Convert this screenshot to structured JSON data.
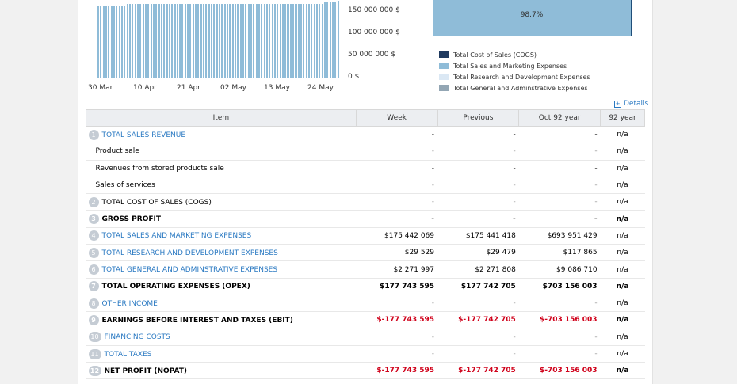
{
  "chart_data": [
    {
      "type": "bar",
      "y_ticks": [
        "150 000 000 $",
        "100 000 000 $",
        "50 000 000 $",
        "0 $"
      ],
      "ylim": [
        0,
        175000000
      ],
      "x_labels": [
        "30 Mar",
        "10 Apr",
        "21 Apr",
        "02 May",
        "13 May",
        "24 May"
      ],
      "bar_count": 92,
      "values": [
        163000000,
        163000000,
        163000000,
        163000000,
        163000000,
        163000000,
        163000000,
        163000000,
        163000000,
        163000000,
        163000000,
        167000000,
        167000000,
        167000000,
        167000000,
        167000000,
        167000000,
        167000000,
        167000000,
        167000000,
        167000000,
        167000000,
        167000000,
        167000000,
        167000000,
        167000000,
        167000000,
        167000000,
        167000000,
        167000000,
        167000000,
        167000000,
        167000000,
        167000000,
        167000000,
        167000000,
        167000000,
        167000000,
        167000000,
        167000000,
        167000000,
        167000000,
        167000000,
        167000000,
        167000000,
        167000000,
        167000000,
        167000000,
        167000000,
        167000000,
        167000000,
        167000000,
        167000000,
        167000000,
        167000000,
        167000000,
        167000000,
        167000000,
        167000000,
        167000000,
        167000000,
        167000000,
        167000000,
        167000000,
        167000000,
        167000000,
        167000000,
        167000000,
        167000000,
        167000000,
        167000000,
        167000000,
        167000000,
        167000000,
        167000000,
        167000000,
        167000000,
        167000000,
        167000000,
        167000000,
        167000000,
        167000000,
        167000000,
        167000000,
        167000000,
        167000000,
        169000000,
        169000000,
        169000000,
        169000000,
        171000000,
        173000000
      ],
      "color": "#8fbcd8"
    },
    {
      "type": "pie",
      "slices": [
        {
          "name": "Total Cost of Sales (COGS)",
          "value": 0,
          "color": "#1f3a5f"
        },
        {
          "name": "Total Sales and Marketing Expenses",
          "value": 98.7,
          "color": "#8fbcd8"
        },
        {
          "name": "Total Research and Development Expenses",
          "value": 0,
          "color": "#dbe8f4"
        },
        {
          "name": "Total General and Adminstrative Expenses",
          "value": 1.3,
          "color": "#93a6b4"
        }
      ],
      "label": "98.7%"
    }
  ],
  "details_label": "Details",
  "table": {
    "headers": [
      "Item",
      "Week",
      "Previous",
      "Oct 92 year",
      "92 year"
    ],
    "rows": [
      {
        "num": "1",
        "label": "TOTAL SALES REVENUE",
        "style": "link",
        "week": "-",
        "prev": "-",
        "oct": "-",
        "y92": "n/a",
        "dash_style": "dark"
      },
      {
        "num": "",
        "label": "Product sale",
        "style": "sub",
        "week": "-",
        "prev": "-",
        "oct": "-",
        "y92": "n/a",
        "dash_style": "light"
      },
      {
        "num": "",
        "label": "Revenues from stored products sale",
        "style": "sub",
        "week": "-",
        "prev": "-",
        "oct": "-",
        "y92": "n/a",
        "dash_style": "dark"
      },
      {
        "num": "",
        "label": "Sales of services",
        "style": "sub",
        "week": "-",
        "prev": "-",
        "oct": "-",
        "y92": "n/a",
        "dash_style": "light"
      },
      {
        "num": "2",
        "label": "TOTAL COST OF SALES (COGS)",
        "style": "plain",
        "week": "-",
        "prev": "-",
        "oct": "-",
        "y92": "n/a",
        "dash_style": "light"
      },
      {
        "num": "3",
        "label": "GROSS PROFIT",
        "style": "bold",
        "week": "-",
        "prev": "-",
        "oct": "-",
        "y92": "n/a",
        "dash_style": "dark"
      },
      {
        "num": "4",
        "label": "TOTAL SALES AND MARKETING EXPENSES",
        "style": "link",
        "week": "$175 442 069",
        "prev": "$175 441 418",
        "oct": "$693 951 429",
        "y92": "n/a"
      },
      {
        "num": "5",
        "label": "TOTAL RESEARCH AND DEVELOPMENT EXPENSES",
        "style": "link",
        "week": "$29 529",
        "prev": "$29 479",
        "oct": "$117 865",
        "y92": "n/a"
      },
      {
        "num": "6",
        "label": "TOTAL GENERAL AND ADMINSTRATIVE EXPENSES",
        "style": "link",
        "week": "$2 271 997",
        "prev": "$2 271 808",
        "oct": "$9 086 710",
        "y92": "n/a"
      },
      {
        "num": "7",
        "label": "TOTAL OPERATING EXPENSES (OPEX)",
        "style": "bold",
        "week": "$177 743 595",
        "prev": "$177 742 705",
        "oct": "$703 156 003",
        "y92": "n/a"
      },
      {
        "num": "8",
        "label": "OTHER INCOME",
        "style": "link",
        "week": "-",
        "prev": "-",
        "oct": "-",
        "y92": "n/a",
        "dash_style": "light"
      },
      {
        "num": "9",
        "label": "EARNINGS BEFORE INTEREST AND TAXES (EBIT)",
        "style": "bold",
        "week": "$-177 743 595",
        "prev": "$-177 742 705",
        "oct": "$-703 156 003",
        "y92": "n/a",
        "neg": true
      },
      {
        "num": "10",
        "label": "FINANCING COSTS",
        "style": "link",
        "week": "-",
        "prev": "-",
        "oct": "-",
        "y92": "n/a",
        "dash_style": "light"
      },
      {
        "num": "11",
        "label": "TOTAL TAXES",
        "style": "link",
        "week": "-",
        "prev": "-",
        "oct": "-",
        "y92": "n/a",
        "dash_style": "light"
      },
      {
        "num": "12",
        "label": "NET PROFIT (NOPAT)",
        "style": "bold",
        "week": "$-177 743 595",
        "prev": "$-177 742 705",
        "oct": "$-703 156 003",
        "y92": "n/a",
        "neg": true
      }
    ]
  }
}
